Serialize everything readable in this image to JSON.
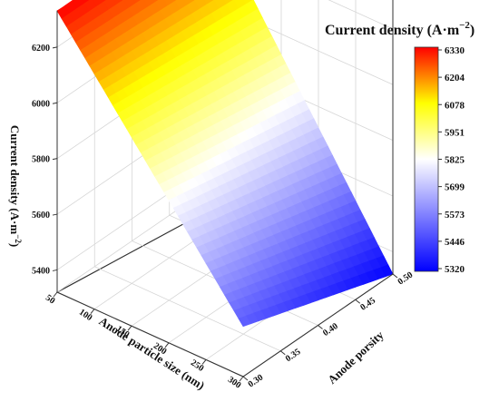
{
  "chart_data": {
    "type": "surface3d",
    "title": "Current density (A·m",
    "title_sup": "−2",
    "xlabel": "Anode particle size (nm)",
    "ylabel": "Anode porsity",
    "zlabel": "Current density (A·m",
    "zlabel_sup": "−2",
    "zlabel_tail": ")",
    "x_ticks": [
      "50",
      "100",
      "150",
      "200",
      "250",
      "300"
    ],
    "y_ticks": [
      "0.30",
      "0.35",
      "0.40",
      "0.45",
      "0.50"
    ],
    "z_ticks": [
      "5400",
      "5600",
      "5800",
      "6000",
      "6200"
    ],
    "xlim": [
      50,
      300
    ],
    "ylim": [
      0.3,
      0.5
    ],
    "zlim": [
      5320,
      6330
    ],
    "colorbar": {
      "ticks": [
        "6330",
        "6204",
        "6078",
        "5951",
        "5825",
        "5699",
        "5573",
        "5446",
        "5320"
      ],
      "colors": [
        "#0000ff",
        "#ffffff",
        "#ffff00",
        "#ff0000"
      ]
    },
    "corners": [
      {
        "x": 50,
        "y": 0.3,
        "z": 6330
      },
      {
        "x": 50,
        "y": 0.5,
        "z": 6330
      },
      {
        "x": 300,
        "y": 0.3,
        "z": 5500
      },
      {
        "x": 300,
        "y": 0.5,
        "z": 5320
      }
    ],
    "grid": true
  }
}
